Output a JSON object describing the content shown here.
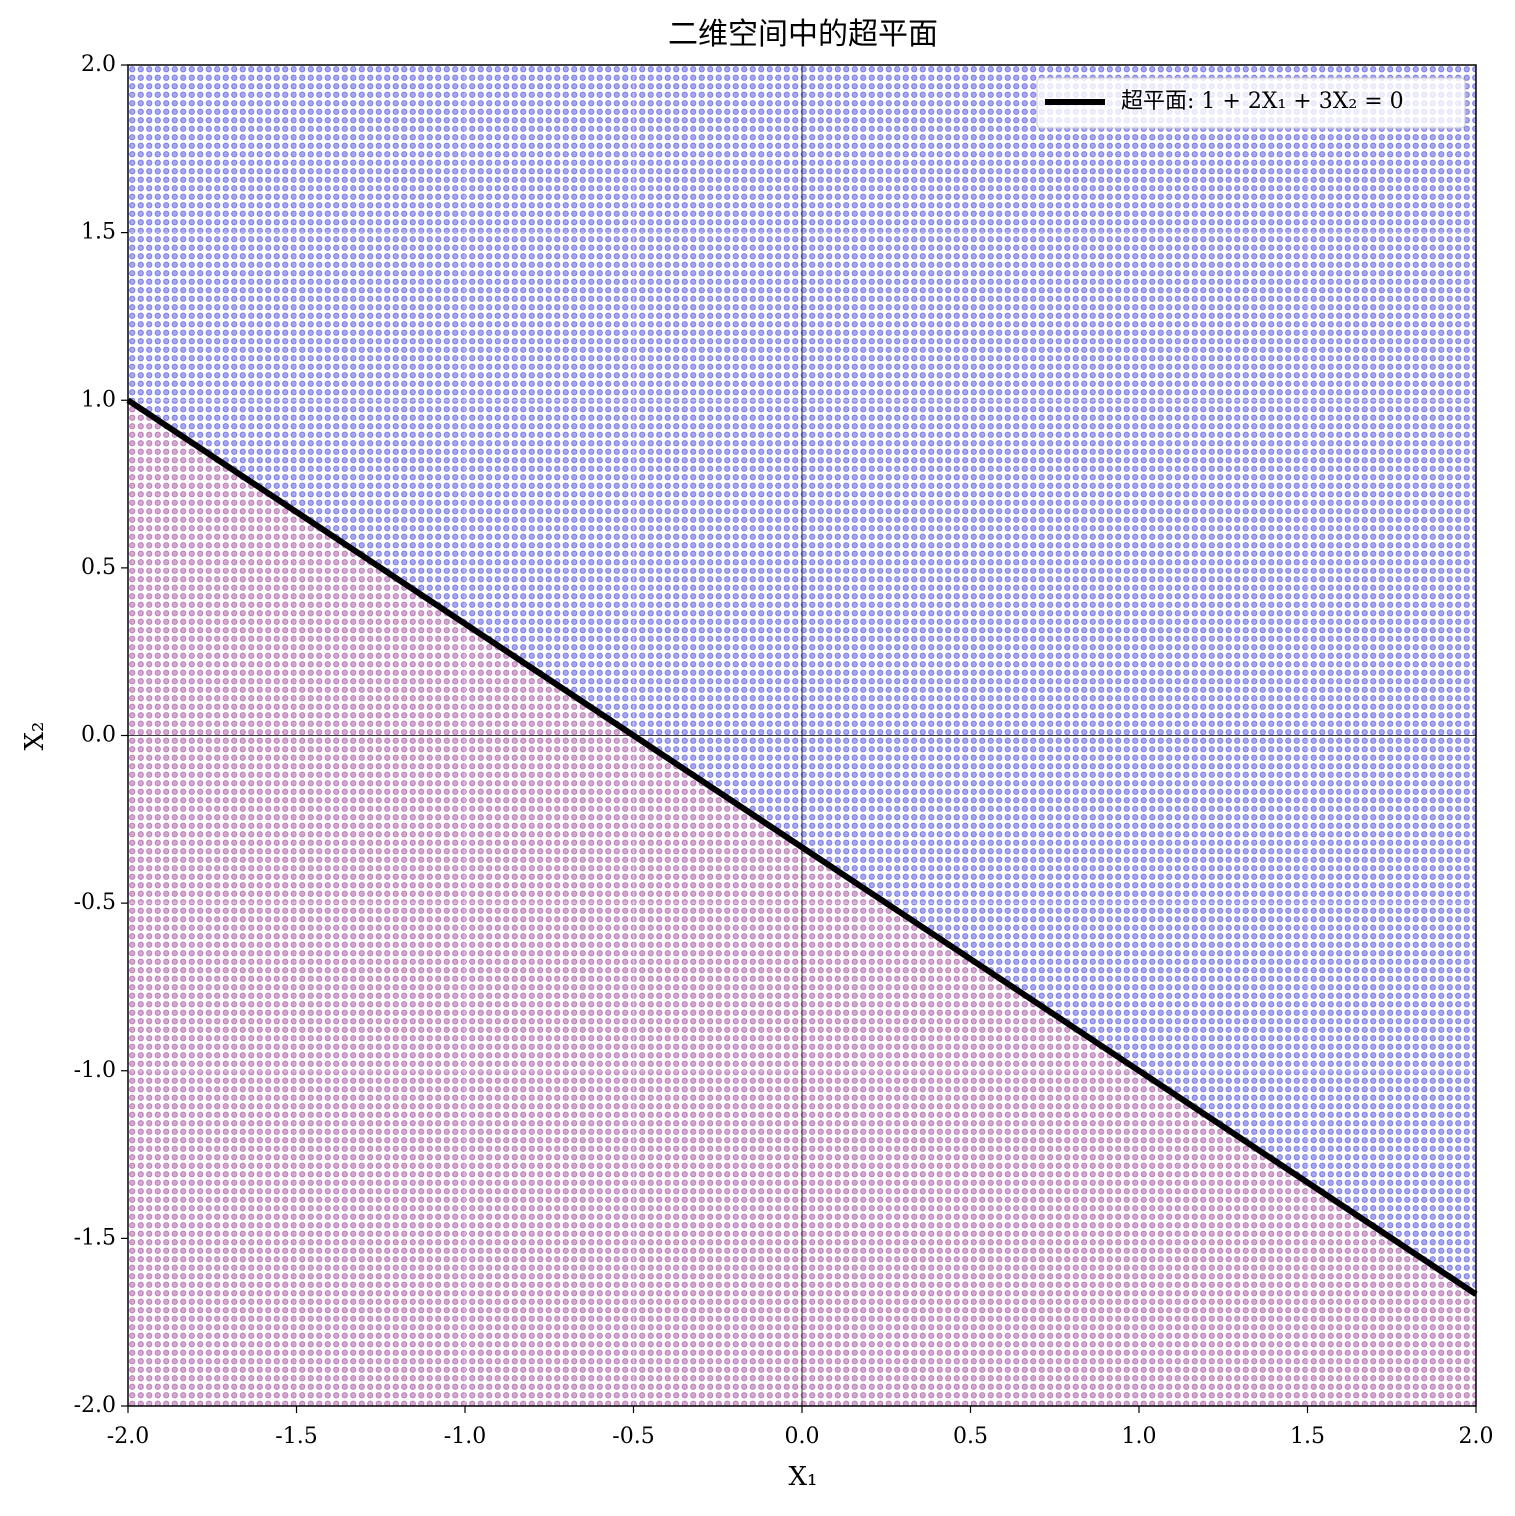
{
  "chart_data": {
    "type": "line",
    "title": "二维空间中的超平面",
    "x_label": "X₁",
    "y_label": "X₂",
    "x": [
      -2.0,
      2.0
    ],
    "series": [
      {
        "name": "超平面: 1 + 2X₁ + 3X₂ = 0",
        "color": "#000000",
        "values": [
          1.0,
          -1.6667
        ]
      }
    ],
    "xlim": [
      -2.0,
      2.0
    ],
    "ylim": [
      -2.0,
      2.0
    ],
    "xticks": [
      {
        "value": -2.0,
        "label": "-2.0"
      },
      {
        "value": -1.5,
        "label": "-1.5"
      },
      {
        "value": -1.0,
        "label": "-1.0"
      },
      {
        "value": -0.5,
        "label": "-0.5"
      },
      {
        "value": 0,
        "label": "0.0"
      },
      {
        "value": 0.5,
        "label": "0.5"
      },
      {
        "value": 1.0,
        "label": "1.0"
      },
      {
        "value": 1.5,
        "label": "1.5"
      },
      {
        "value": 2.0,
        "label": "2.0"
      }
    ],
    "yticks": [
      {
        "value": -2.0,
        "label": "-2.0"
      },
      {
        "value": -1.5,
        "label": "-1.5"
      },
      {
        "value": -1.0,
        "label": "-1.0"
      },
      {
        "value": -0.5,
        "label": "-0.5"
      },
      {
        "value": 0,
        "label": "0.0"
      },
      {
        "value": 0.5,
        "label": "0.5"
      },
      {
        "value": 1.0,
        "label": "1.0"
      },
      {
        "value": 1.5,
        "label": "1.5"
      },
      {
        "value": 2.0,
        "label": "2.0"
      }
    ],
    "grid": true,
    "legend": "upper right"
  }
}
